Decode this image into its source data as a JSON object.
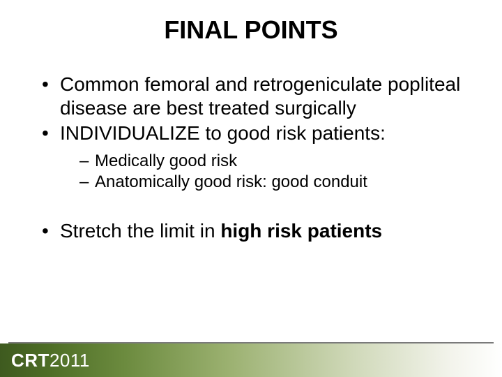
{
  "slide": {
    "title": "FINAL POINTS",
    "title_fontsize": 36,
    "title_color": "#000000",
    "body_fontsize_l1": 28,
    "body_fontsize_l2": 24,
    "body_color": "#000000",
    "background_color": "#ffffff",
    "bullets": [
      {
        "text": "Common femoral and retrogeniculate popliteal disease are best treated surgically"
      },
      {
        "text": "INDIVIDUALIZE to good risk patients:",
        "sub": [
          {
            "text": "Medically good risk"
          },
          {
            "text": "Anatomically good risk: good conduit"
          }
        ]
      },
      {
        "prefix": "Stretch the limit in ",
        "bold": "high risk patients"
      }
    ]
  },
  "footer": {
    "logo_crt": "CRT",
    "logo_year": "2011",
    "logo_color": "#ffffff",
    "line_color": "#7a7a7a",
    "gradient_stops": [
      "#3e5a1f",
      "#4e6e26",
      "#6c8b3f",
      "#9ab06f",
      "#cfd8b8",
      "#f3f4ec",
      "#ffffff"
    ],
    "height": 48
  }
}
